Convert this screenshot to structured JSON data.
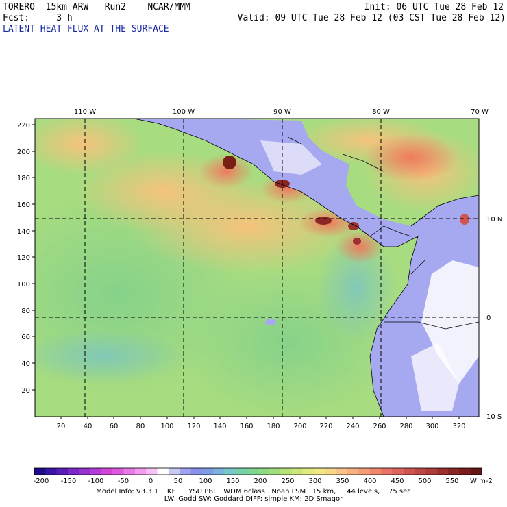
{
  "header": {
    "line1_left": "TORERO  15km ARW   Run2    NCAR/MMM",
    "line1_right": "Init: 06 UTC Tue 28 Feb 12",
    "line2_left": "Fcst:     3 h",
    "line2_right": "Valid: 09 UTC Tue 28 Feb 12 (03 CST Tue 28 Feb 12)",
    "title": "LATENT HEAT FLUX AT THE SURFACE"
  },
  "map": {
    "lon_labels": [
      "110 W",
      "100 W",
      "90 W",
      "80 W",
      "70 W"
    ],
    "lat_labels": [
      "10 N",
      "0",
      "10 S"
    ],
    "y_ticks": [
      "20",
      "40",
      "60",
      "80",
      "100",
      "120",
      "140",
      "160",
      "180",
      "200",
      "220"
    ],
    "x_ticks": [
      "20",
      "40",
      "60",
      "80",
      "100",
      "120",
      "140",
      "160",
      "180",
      "200",
      "220",
      "240",
      "260",
      "280",
      "300",
      "320"
    ],
    "colors": {
      "land": "#a7a9f0",
      "ocean_low": "#8fd48a",
      "ocean_mid": "#d3e77f",
      "high": "#f5a57a",
      "peak": "#7a1f14"
    }
  },
  "colorbar": {
    "labels": [
      "-200",
      "-150",
      "-100",
      "-50",
      "0",
      "50",
      "100",
      "150",
      "200",
      "250",
      "300",
      "350",
      "400",
      "450",
      "500",
      "550"
    ],
    "units": "W m-2",
    "colors": [
      "#1e0a8a",
      "#3a14a8",
      "#5a1eb8",
      "#7a28c8",
      "#9632d0",
      "#b43cd8",
      "#d046d8",
      "#e05ae0",
      "#ea7ae8",
      "#f29cf0",
      "#f8c0f6",
      "#ffffff",
      "#c8c8f4",
      "#a0a4f0",
      "#8890ec",
      "#7c9ce6",
      "#7ab4dc",
      "#78c8c8",
      "#74d2a8",
      "#7cd690",
      "#8cda82",
      "#a0de7c",
      "#b6e27a",
      "#cce67a",
      "#e0ea7e",
      "#f0e884",
      "#f8d888",
      "#fac488",
      "#f8b080",
      "#f49c78",
      "#f08870",
      "#e87468",
      "#de6460",
      "#d05450",
      "#c04844",
      "#ae3c38",
      "#9c302e",
      "#8a2624",
      "#781c1c",
      "#661616"
    ]
  },
  "footer": {
    "line1": "Model Info: V3.3.1    KF      YSU PBL   WDM 6class   Noah LSM   15 km,     44 levels,    75 sec",
    "line2": "LW: Godd SW: Goddard DIFF: simple KM: 2D Smagor"
  }
}
